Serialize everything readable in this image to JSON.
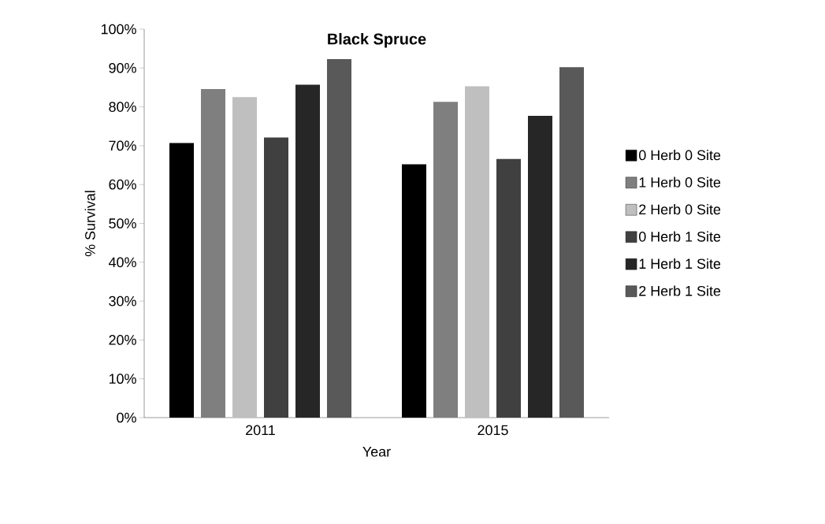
{
  "chart_data": {
    "type": "bar",
    "title": "**Black Spruce**",
    "xlabel": "Year",
    "ylabel": "% Survival",
    "categories": [
      "2011",
      "2015"
    ],
    "series": [
      {
        "name": "0 Herb 0 Site",
        "color": "#000000",
        "values": [
          70.7,
          65.2
        ]
      },
      {
        "name": "1 Herb 0 Site",
        "color": "#7f7f7f",
        "values": [
          84.6,
          81.3
        ]
      },
      {
        "name": "2 Herb 0 Site",
        "color": "#bfbfbf",
        "values": [
          82.5,
          85.3
        ]
      },
      {
        "name": "0 Herb 1 Site",
        "color": "#404040",
        "values": [
          72.1,
          66.6
        ]
      },
      {
        "name": "1 Herb 1 Site",
        "color": "#262626",
        "values": [
          85.7,
          77.7
        ]
      },
      {
        "name": "2 Herb 1 Site",
        "color": "#595959",
        "values": [
          92.3,
          90.2
        ]
      }
    ],
    "ylim": [
      0,
      100
    ],
    "yticks": [
      {
        "value": 0,
        "label": "0%"
      },
      {
        "value": 10,
        "label": "10%"
      },
      {
        "value": 20,
        "label": "20%"
      },
      {
        "value": 30,
        "label": "30%"
      },
      {
        "value": 40,
        "label": "40%"
      },
      {
        "value": 50,
        "label": "50%"
      },
      {
        "value": 60,
        "label": "60%"
      },
      {
        "value": 70,
        "label": "70%"
      },
      {
        "value": 80,
        "label": "80%"
      },
      {
        "value": 90,
        "label": "90%"
      },
      {
        "value": 100,
        "label": "100%"
      }
    ],
    "legend": "right"
  }
}
